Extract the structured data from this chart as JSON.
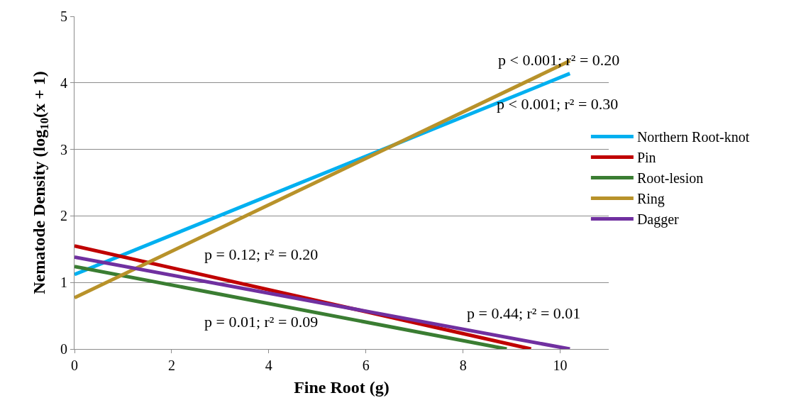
{
  "chart_data": {
    "type": "line",
    "xlabel": "Fine Root (g)",
    "ylabel": "Nematode Density (log$_{10}$(x + 1)",
    "xlim": [
      0,
      11
    ],
    "xticks": [
      0,
      2,
      4,
      6,
      8,
      10
    ],
    "ylim": [
      0,
      5
    ],
    "yticks": [
      0,
      1,
      2,
      3,
      4,
      5
    ],
    "grid": "y",
    "legend": "right",
    "marker": "none",
    "line_style": "solid",
    "series": [
      {
        "name": "Northern Root-knot",
        "color": "#00b0f0",
        "x": [
          0,
          10.2
        ],
        "values": [
          1.12,
          4.14
        ]
      },
      {
        "name": "Pin",
        "color": "#c00000",
        "x": [
          0,
          9.4
        ],
        "values": [
          1.55,
          0
        ]
      },
      {
        "name": "Root-lesion",
        "color": "#3a7d32",
        "x": [
          0,
          8.9
        ],
        "values": [
          1.24,
          0
        ]
      },
      {
        "name": "Ring",
        "color": "#b8922a",
        "x": [
          0,
          10.2
        ],
        "values": [
          0.77,
          4.33
        ]
      },
      {
        "name": "Dagger",
        "color": "#7030a0",
        "x": [
          0,
          10.2
        ],
        "values": [
          1.38,
          0
        ]
      }
    ],
    "annotations": [
      "p < 0.001; r² = 0.20",
      "p < 0.001; r² = 0.30",
      "p = 0.12; r² = 0.20",
      "p = 0.01; r² = 0.09",
      "p = 0.44; r² = 0.01"
    ]
  }
}
